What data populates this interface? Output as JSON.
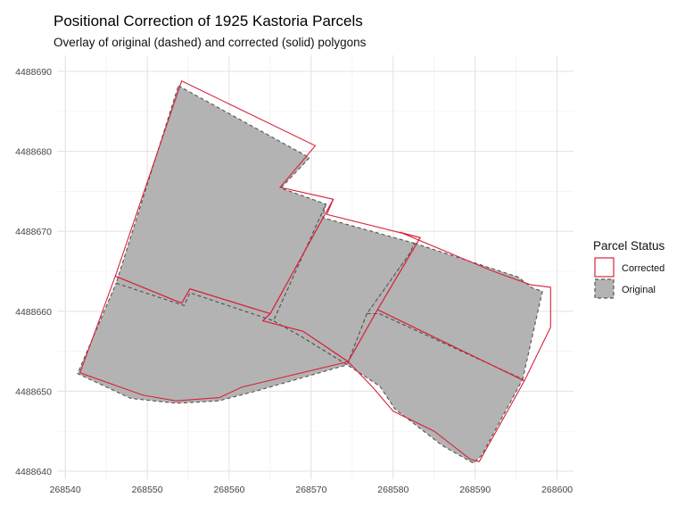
{
  "chart_data": {
    "type": "map",
    "title": "Positional Correction of 1925 Kastoria Parcels",
    "subtitle": "Overlay of original (dashed) and corrected (solid) polygons",
    "xlim": [
      268539,
      268602
    ],
    "ylim": [
      4488639,
      4488692
    ],
    "x_ticks": [
      268540,
      268550,
      268560,
      268570,
      268580,
      268590,
      268600
    ],
    "y_ticks": [
      4488640,
      4488650,
      4488660,
      4488670,
      4488680,
      4488690
    ],
    "x_tick_labels": [
      "268540",
      "268550",
      "268560",
      "268570",
      "268580",
      "268590",
      "268600"
    ],
    "y_tick_labels": [
      "4488640",
      "4488650",
      "4488660",
      "4488670",
      "4488680",
      "4488690"
    ],
    "grid": true,
    "legend": {
      "title": "Parcel Status",
      "position": "right",
      "entries": [
        {
          "label": "Corrected",
          "style": "solid",
          "color": "#d6243c"
        },
        {
          "label": "Original",
          "style": "dashed",
          "color": "#555555",
          "fill": "#b3b3b3"
        }
      ]
    },
    "series": [
      {
        "name": "Original",
        "color": "#555555",
        "fill": "#b3b3b3",
        "polygons": [
          [
            [
              268553.8,
              4488688.2
            ],
            [
              268569.8,
              4488679.2
            ],
            [
              268566.3,
              4488675.4
            ],
            [
              268571.8,
              4488673.4
            ],
            [
              268565.4,
              4488658.8
            ],
            [
              268555.2,
              4488662.3
            ],
            [
              268554.5,
              4488660.7
            ],
            [
              268546.2,
              4488663.5
            ]
          ],
          [
            [
              268546.2,
              4488663.5
            ],
            [
              268554.5,
              4488660.7
            ],
            [
              268555.2,
              4488662.3
            ],
            [
              268565.4,
              4488658.8
            ],
            [
              268568.7,
              4488656.9
            ],
            [
              268574.4,
              4488653.3
            ],
            [
              268563.2,
              4488650.0
            ],
            [
              268558.7,
              4488648.8
            ],
            [
              268553.6,
              4488648.5
            ],
            [
              268548.0,
              4488649.1
            ],
            [
              268541.5,
              4488652.2
            ]
          ],
          [
            [
              268571.8,
              4488673.4
            ],
            [
              268571.4,
              4488671.7
            ],
            [
              268582.6,
              4488668.5
            ],
            [
              268582.0,
              4488667.2
            ],
            [
              268576.8,
              4488659.7
            ],
            [
              268574.4,
              4488653.3
            ],
            [
              268568.7,
              4488656.9
            ],
            [
              268565.4,
              4488658.8
            ]
          ],
          [
            [
              268582.6,
              4488668.5
            ],
            [
              268595.2,
              4488664.3
            ],
            [
              268597.0,
              4488662.9
            ],
            [
              268598.2,
              4488662.5
            ],
            [
              268595.8,
              4488651.5
            ],
            [
              268578.3,
              4488659.7
            ],
            [
              268576.8,
              4488659.7
            ],
            [
              268582.0,
              4488667.2
            ]
          ],
          [
            [
              268576.8,
              4488659.7
            ],
            [
              268578.3,
              4488659.7
            ],
            [
              268595.8,
              4488651.5
            ],
            [
              268590.8,
              4488642.0
            ],
            [
              268589.8,
              4488641.0
            ],
            [
              268586.0,
              4488643.2
            ],
            [
              268580.2,
              4488647.8
            ],
            [
              268578.4,
              4488650.6
            ],
            [
              268574.4,
              4488653.3
            ]
          ]
        ]
      },
      {
        "name": "Corrected",
        "color": "#d6243c",
        "polygons": [
          [
            [
              268554.2,
              4488688.8
            ],
            [
              268570.5,
              4488680.7
            ],
            [
              268566.2,
              4488675.5
            ],
            [
              268572.7,
              4488674.0
            ],
            [
              268565.0,
              4488659.7
            ],
            [
              268555.2,
              4488662.8
            ],
            [
              268554.2,
              4488661.0
            ],
            [
              268546.1,
              4488664.4
            ]
          ],
          [
            [
              268546.1,
              4488664.4
            ],
            [
              268554.2,
              4488661.0
            ],
            [
              268555.2,
              4488662.8
            ],
            [
              268565.0,
              4488659.7
            ],
            [
              268564.1,
              4488658.8
            ],
            [
              268569.0,
              4488657.5
            ],
            [
              268574.5,
              4488653.7
            ],
            [
              268561.5,
              4488650.5
            ],
            [
              268558.8,
              4488649.2
            ],
            [
              268553.5,
              4488648.8
            ],
            [
              268549.5,
              4488649.5
            ],
            [
              268541.8,
              4488652.3
            ]
          ],
          [
            [
              268572.7,
              4488674.0
            ],
            [
              268571.9,
              4488672.1
            ],
            [
              268583.3,
              4488669.2
            ],
            [
              268578.1,
              4488660.2
            ],
            [
              268574.5,
              4488653.7
            ],
            [
              268569.0,
              4488657.5
            ],
            [
              268564.1,
              4488658.8
            ],
            [
              268565.0,
              4488659.7
            ]
          ],
          [
            [
              268583.3,
              4488669.2
            ],
            [
              268580.8,
              4488669.9
            ],
            [
              268592.2,
              4488665.0
            ],
            [
              268596.8,
              4488663.3
            ],
            [
              268599.2,
              4488663.0
            ],
            [
              268599.2,
              4488658.0
            ],
            [
              268596.0,
              4488651.3
            ],
            [
              268578.1,
              4488660.2
            ]
          ],
          [
            [
              268578.1,
              4488660.2
            ],
            [
              268596.0,
              4488651.3
            ],
            [
              268590.5,
              4488641.2
            ],
            [
              268589.4,
              4488641.5
            ],
            [
              268585.0,
              4488645.0
            ],
            [
              268580.0,
              4488647.5
            ],
            [
              268577.5,
              4488650.5
            ],
            [
              268574.5,
              4488653.7
            ]
          ]
        ]
      }
    ]
  }
}
